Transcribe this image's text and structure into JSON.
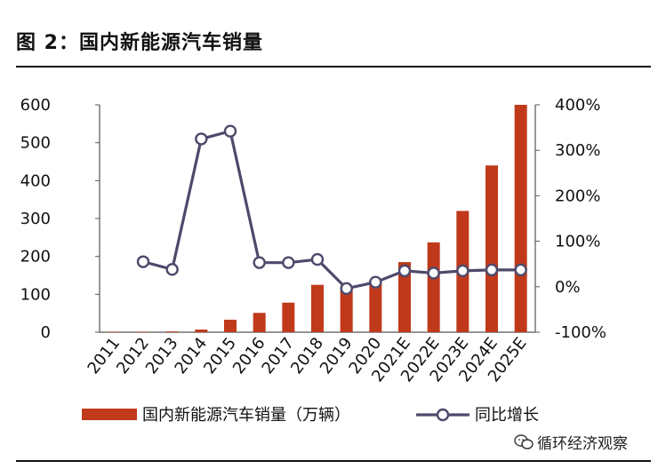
{
  "header": {
    "figure_title": "图 2：国内新能源汽车销量"
  },
  "watermark": {
    "text": "循环经济观察",
    "icon": "wechat-icon"
  },
  "colors": {
    "bar": "#c0391b",
    "line": "#4e4a6b",
    "axis": "#555555",
    "marker_fill": "#ffffff"
  },
  "chart_data": {
    "type": "bar",
    "title": "",
    "xlabel": "",
    "ylabel": "",
    "categories": [
      "2011",
      "2012",
      "2013",
      "2014",
      "2015",
      "2016",
      "2017",
      "2018",
      "2019",
      "2020",
      "2021E",
      "2022E",
      "2023E",
      "2024E",
      "2025E"
    ],
    "series": [
      {
        "name": "国内新能源汽车销量（万辆）",
        "type": "bar",
        "axis": "left",
        "values": [
          1,
          1,
          2,
          7,
          33,
          51,
          78,
          125,
          120,
          137,
          185,
          237,
          320,
          440,
          600
        ]
      },
      {
        "name": "同比增长",
        "type": "line",
        "axis": "right",
        "values": [
          null,
          55,
          38,
          325,
          342,
          53,
          53,
          60,
          -4,
          10,
          35,
          30,
          35,
          37,
          37
        ]
      }
    ],
    "ylim_left": [
      0,
      600
    ],
    "yticks_left": [
      "0",
      "100",
      "200",
      "300",
      "400",
      "500",
      "600"
    ],
    "ylim_right": [
      -100,
      400
    ],
    "yticks_right": [
      "-100%",
      "0%",
      "100%",
      "200%",
      "300%",
      "400%"
    ],
    "grid": false,
    "legend_position": "bottom"
  }
}
